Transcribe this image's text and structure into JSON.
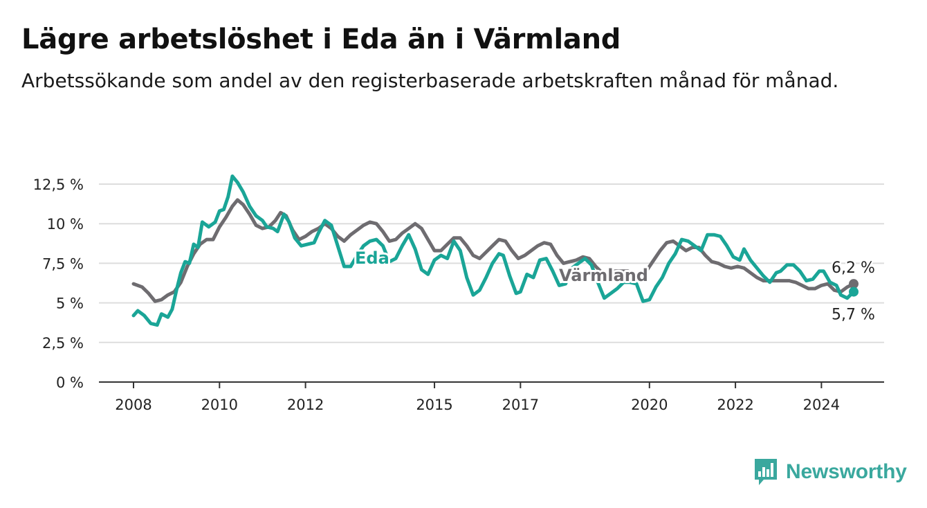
{
  "header": {
    "title": "Lägre arbetslöshet i Eda än i Värmland",
    "subtitle": "Arbetssökande som andel av den registerbaserade arbetskraften månad för månad."
  },
  "branding": {
    "logo_text": "Newsworthy"
  },
  "chart_data": {
    "type": "line",
    "title": "Lägre arbetslöshet i Eda än i Värmland",
    "subtitle": "Arbetssökande som andel av den registerbaserade arbetskraften månad för månad.",
    "x_range": [
      2008.0,
      2024.75
    ],
    "ylim": [
      0,
      12.5
    ],
    "y_ticks": [
      0,
      2.5,
      5,
      7.5,
      10,
      12.5
    ],
    "y_tick_labels": [
      "0 %",
      "2,5 %",
      "5 %",
      "7,5 %",
      "10 %",
      "12,5 %"
    ],
    "x_ticks": [
      2008,
      2010,
      2012,
      2015,
      2017,
      2020,
      2022,
      2024
    ],
    "x_tick_labels": [
      "2008",
      "2010",
      "2012",
      "2015",
      "2017",
      "2020",
      "2022",
      "2024"
    ],
    "grid": "horizontal",
    "legend": "inline labels",
    "series": [
      {
        "name": "Värmland",
        "color": "#6e6c70",
        "end_label": "6,2 %",
        "points": [
          [
            2008.0,
            6.2
          ],
          [
            2008.2,
            6.0
          ],
          [
            2008.35,
            5.6
          ],
          [
            2008.5,
            5.1
          ],
          [
            2008.65,
            5.2
          ],
          [
            2008.8,
            5.5
          ],
          [
            2008.95,
            5.7
          ],
          [
            2009.1,
            6.3
          ],
          [
            2009.25,
            7.3
          ],
          [
            2009.4,
            8.1
          ],
          [
            2009.55,
            8.7
          ],
          [
            2009.7,
            9.0
          ],
          [
            2009.85,
            9.0
          ],
          [
            2010.0,
            9.8
          ],
          [
            2010.15,
            10.4
          ],
          [
            2010.3,
            11.1
          ],
          [
            2010.42,
            11.5
          ],
          [
            2010.55,
            11.2
          ],
          [
            2010.7,
            10.6
          ],
          [
            2010.85,
            9.9
          ],
          [
            2011.0,
            9.7
          ],
          [
            2011.15,
            9.8
          ],
          [
            2011.3,
            10.2
          ],
          [
            2011.42,
            10.7
          ],
          [
            2011.55,
            10.5
          ],
          [
            2011.7,
            9.6
          ],
          [
            2011.85,
            9.0
          ],
          [
            2012.0,
            9.2
          ],
          [
            2012.15,
            9.5
          ],
          [
            2012.3,
            9.7
          ],
          [
            2012.45,
            10.0
          ],
          [
            2012.6,
            9.7
          ],
          [
            2012.75,
            9.2
          ],
          [
            2012.9,
            8.9
          ],
          [
            2013.05,
            9.3
          ],
          [
            2013.2,
            9.6
          ],
          [
            2013.35,
            9.9
          ],
          [
            2013.5,
            10.1
          ],
          [
            2013.65,
            10.0
          ],
          [
            2013.8,
            9.5
          ],
          [
            2013.95,
            8.9
          ],
          [
            2014.1,
            9.0
          ],
          [
            2014.25,
            9.4
          ],
          [
            2014.4,
            9.7
          ],
          [
            2014.55,
            10.0
          ],
          [
            2014.7,
            9.7
          ],
          [
            2014.85,
            9.0
          ],
          [
            2015.0,
            8.3
          ],
          [
            2015.15,
            8.3
          ],
          [
            2015.3,
            8.7
          ],
          [
            2015.45,
            9.1
          ],
          [
            2015.6,
            9.1
          ],
          [
            2015.75,
            8.6
          ],
          [
            2015.9,
            8.0
          ],
          [
            2016.05,
            7.8
          ],
          [
            2016.2,
            8.2
          ],
          [
            2016.35,
            8.6
          ],
          [
            2016.5,
            9.0
          ],
          [
            2016.65,
            8.9
          ],
          [
            2016.8,
            8.3
          ],
          [
            2016.95,
            7.8
          ],
          [
            2017.1,
            8.0
          ],
          [
            2017.25,
            8.3
          ],
          [
            2017.4,
            8.6
          ],
          [
            2017.55,
            8.8
          ],
          [
            2017.7,
            8.7
          ],
          [
            2017.85,
            8.0
          ],
          [
            2018.0,
            7.5
          ],
          [
            2018.15,
            7.6
          ],
          [
            2018.3,
            7.7
          ],
          [
            2018.45,
            7.9
          ],
          [
            2018.6,
            7.8
          ],
          [
            2018.75,
            7.3
          ],
          [
            2018.9,
            6.9
          ],
          [
            2019.05,
            6.9
          ],
          [
            2019.2,
            7.0
          ],
          [
            2019.35,
            7.0
          ],
          [
            2019.5,
            7.0
          ],
          [
            2019.65,
            6.7
          ],
          [
            2019.8,
            6.8
          ],
          [
            2019.95,
            7.1
          ],
          [
            2020.1,
            7.7
          ],
          [
            2020.25,
            8.3
          ],
          [
            2020.4,
            8.8
          ],
          [
            2020.55,
            8.9
          ],
          [
            2020.7,
            8.6
          ],
          [
            2020.85,
            8.3
          ],
          [
            2021.0,
            8.5
          ],
          [
            2021.15,
            8.5
          ],
          [
            2021.3,
            8.0
          ],
          [
            2021.45,
            7.6
          ],
          [
            2021.6,
            7.5
          ],
          [
            2021.75,
            7.3
          ],
          [
            2021.9,
            7.2
          ],
          [
            2022.05,
            7.3
          ],
          [
            2022.2,
            7.2
          ],
          [
            2022.35,
            6.9
          ],
          [
            2022.5,
            6.6
          ],
          [
            2022.65,
            6.4
          ],
          [
            2022.8,
            6.4
          ],
          [
            2022.95,
            6.4
          ],
          [
            2023.1,
            6.4
          ],
          [
            2023.25,
            6.4
          ],
          [
            2023.4,
            6.3
          ],
          [
            2023.55,
            6.1
          ],
          [
            2023.7,
            5.9
          ],
          [
            2023.85,
            5.9
          ],
          [
            2024.0,
            6.1
          ],
          [
            2024.15,
            6.2
          ],
          [
            2024.3,
            5.8
          ],
          [
            2024.45,
            5.7
          ],
          [
            2024.6,
            6.0
          ],
          [
            2024.75,
            6.2
          ]
        ]
      },
      {
        "name": "Eda",
        "color": "#1aa597",
        "end_label": "5,7 %",
        "points": [
          [
            2008.0,
            4.2
          ],
          [
            2008.1,
            4.5
          ],
          [
            2008.25,
            4.2
          ],
          [
            2008.4,
            3.7
          ],
          [
            2008.55,
            3.6
          ],
          [
            2008.65,
            4.3
          ],
          [
            2008.8,
            4.1
          ],
          [
            2008.9,
            4.6
          ],
          [
            2009.0,
            5.8
          ],
          [
            2009.1,
            6.9
          ],
          [
            2009.2,
            7.6
          ],
          [
            2009.3,
            7.5
          ],
          [
            2009.4,
            8.7
          ],
          [
            2009.5,
            8.5
          ],
          [
            2009.6,
            10.1
          ],
          [
            2009.75,
            9.8
          ],
          [
            2009.9,
            10.1
          ],
          [
            2010.0,
            10.8
          ],
          [
            2010.1,
            10.9
          ],
          [
            2010.2,
            11.7
          ],
          [
            2010.3,
            13.0
          ],
          [
            2010.42,
            12.6
          ],
          [
            2010.55,
            12.0
          ],
          [
            2010.7,
            11.1
          ],
          [
            2010.85,
            10.5
          ],
          [
            2011.0,
            10.2
          ],
          [
            2011.1,
            9.8
          ],
          [
            2011.25,
            9.7
          ],
          [
            2011.35,
            9.5
          ],
          [
            2011.5,
            10.6
          ],
          [
            2011.62,
            10.1
          ],
          [
            2011.75,
            9.1
          ],
          [
            2011.9,
            8.6
          ],
          [
            2012.05,
            8.7
          ],
          [
            2012.2,
            8.8
          ],
          [
            2012.3,
            9.4
          ],
          [
            2012.45,
            10.2
          ],
          [
            2012.6,
            9.9
          ],
          [
            2012.75,
            8.6
          ],
          [
            2012.9,
            7.3
          ],
          [
            2013.05,
            7.3
          ],
          [
            2013.2,
            8.0
          ],
          [
            2013.35,
            8.6
          ],
          [
            2013.5,
            8.9
          ],
          [
            2013.65,
            9.0
          ],
          [
            2013.8,
            8.6
          ],
          [
            2013.95,
            7.6
          ],
          [
            2014.1,
            7.8
          ],
          [
            2014.25,
            8.6
          ],
          [
            2014.4,
            9.3
          ],
          [
            2014.55,
            8.4
          ],
          [
            2014.7,
            7.1
          ],
          [
            2014.85,
            6.8
          ],
          [
            2015.0,
            7.7
          ],
          [
            2015.15,
            8.0
          ],
          [
            2015.3,
            7.8
          ],
          [
            2015.45,
            8.9
          ],
          [
            2015.6,
            8.3
          ],
          [
            2015.75,
            6.6
          ],
          [
            2015.9,
            5.5
          ],
          [
            2016.05,
            5.8
          ],
          [
            2016.2,
            6.6
          ],
          [
            2016.35,
            7.5
          ],
          [
            2016.5,
            8.1
          ],
          [
            2016.6,
            8.0
          ],
          [
            2016.75,
            6.7
          ],
          [
            2016.9,
            5.6
          ],
          [
            2017.0,
            5.7
          ],
          [
            2017.15,
            6.8
          ],
          [
            2017.3,
            6.6
          ],
          [
            2017.45,
            7.7
          ],
          [
            2017.6,
            7.8
          ],
          [
            2017.75,
            7.0
          ],
          [
            2017.9,
            6.1
          ],
          [
            2018.05,
            6.2
          ],
          [
            2018.2,
            7.2
          ],
          [
            2018.35,
            7.5
          ],
          [
            2018.5,
            7.8
          ],
          [
            2018.65,
            7.4
          ],
          [
            2018.8,
            6.3
          ],
          [
            2018.95,
            5.3
          ],
          [
            2019.1,
            5.6
          ],
          [
            2019.25,
            5.9
          ],
          [
            2019.4,
            6.3
          ],
          [
            2019.55,
            6.3
          ],
          [
            2019.7,
            6.2
          ],
          [
            2019.85,
            5.1
          ],
          [
            2020.0,
            5.2
          ],
          [
            2020.15,
            6.0
          ],
          [
            2020.3,
            6.6
          ],
          [
            2020.45,
            7.5
          ],
          [
            2020.6,
            8.1
          ],
          [
            2020.75,
            9.0
          ],
          [
            2020.9,
            8.9
          ],
          [
            2021.05,
            8.6
          ],
          [
            2021.2,
            8.3
          ],
          [
            2021.35,
            9.3
          ],
          [
            2021.5,
            9.3
          ],
          [
            2021.65,
            9.2
          ],
          [
            2021.8,
            8.6
          ],
          [
            2021.95,
            7.9
          ],
          [
            2022.1,
            7.7
          ],
          [
            2022.2,
            8.4
          ],
          [
            2022.35,
            7.7
          ],
          [
            2022.5,
            7.2
          ],
          [
            2022.65,
            6.7
          ],
          [
            2022.8,
            6.3
          ],
          [
            2022.95,
            6.9
          ],
          [
            2023.05,
            7.0
          ],
          [
            2023.2,
            7.4
          ],
          [
            2023.35,
            7.4
          ],
          [
            2023.5,
            7.0
          ],
          [
            2023.65,
            6.4
          ],
          [
            2023.8,
            6.5
          ],
          [
            2023.95,
            7.0
          ],
          [
            2024.05,
            7.0
          ],
          [
            2024.2,
            6.3
          ],
          [
            2024.35,
            6.1
          ],
          [
            2024.45,
            5.5
          ],
          [
            2024.6,
            5.3
          ],
          [
            2024.75,
            5.7
          ]
        ]
      }
    ]
  }
}
